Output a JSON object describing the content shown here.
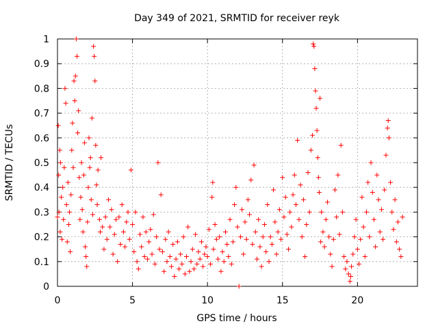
{
  "chart_data": {
    "type": "scatter",
    "title": "Day 349 of 2021, SRMTID for receiver reyk",
    "xlabel": "GPS time / hours",
    "ylabel": "SRMTID / TECUs",
    "xlim": [
      0,
      24
    ],
    "ylim": [
      0,
      1
    ],
    "x_ticks": [
      0,
      5,
      10,
      15,
      20
    ],
    "x_tick_labels": [
      "0",
      "5",
      "10",
      "15",
      "20"
    ],
    "y_ticks": [
      0,
      0.1,
      0.2,
      0.3,
      0.4,
      0.5,
      0.6,
      0.7,
      0.8,
      0.9,
      1
    ],
    "y_tick_labels": [
      "0",
      "0.1",
      "0.2",
      "0.3",
      "0.4",
      "0.5",
      "0.6",
      "0.7",
      "0.8",
      "0.9",
      "1"
    ],
    "grid": true,
    "marker": "+",
    "series": [
      {
        "name": "SRMTID",
        "color": "#ff0000",
        "points": [
          [
            0.0,
            0.28
          ],
          [
            0.05,
            0.65
          ],
          [
            0.08,
            0.45
          ],
          [
            0.1,
            0.3
          ],
          [
            0.15,
            0.55
          ],
          [
            0.18,
            0.22
          ],
          [
            0.2,
            0.5
          ],
          [
            0.25,
            0.36
          ],
          [
            0.3,
            0.19
          ],
          [
            0.35,
            0.4
          ],
          [
            0.4,
            0.27
          ],
          [
            0.45,
            0.48
          ],
          [
            0.5,
            0.8
          ],
          [
            0.55,
            0.74
          ],
          [
            0.6,
            0.33
          ],
          [
            0.65,
            0.18
          ],
          [
            0.7,
            0.42
          ],
          [
            0.75,
            0.25
          ],
          [
            0.8,
            0.3
          ],
          [
            0.85,
            0.14
          ],
          [
            0.9,
            0.37
          ],
          [
            0.95,
            0.55
          ],
          [
            1.0,
            0.66
          ],
          [
            1.05,
            0.48
          ],
          [
            1.1,
            0.83
          ],
          [
            1.15,
            0.75
          ],
          [
            1.2,
            0.85
          ],
          [
            1.25,
            1.0
          ],
          [
            1.3,
            0.93
          ],
          [
            1.35,
            0.62
          ],
          [
            1.4,
            0.71
          ],
          [
            1.45,
            0.44
          ],
          [
            1.5,
            0.27
          ],
          [
            1.55,
            0.36
          ],
          [
            1.6,
            0.5
          ],
          [
            1.65,
            0.31
          ],
          [
            1.7,
            0.22
          ],
          [
            1.75,
            0.45
          ],
          [
            1.8,
            0.58
          ],
          [
            1.85,
            0.16
          ],
          [
            1.9,
            0.12
          ],
          [
            1.95,
            0.08
          ],
          [
            2.0,
            0.26
          ],
          [
            2.05,
            0.4
          ],
          [
            2.1,
            0.6
          ],
          [
            2.15,
            0.48
          ],
          [
            2.2,
            0.52
          ],
          [
            2.25,
            0.35
          ],
          [
            2.3,
            0.68
          ],
          [
            2.35,
            0.29
          ],
          [
            2.4,
            0.97
          ],
          [
            2.45,
            0.93
          ],
          [
            2.5,
            0.83
          ],
          [
            2.55,
            0.57
          ],
          [
            2.6,
            0.41
          ],
          [
            2.65,
            0.33
          ],
          [
            2.7,
            0.47
          ],
          [
            2.8,
            0.27
          ],
          [
            2.85,
            0.22
          ],
          [
            2.9,
            0.52
          ],
          [
            3.0,
            0.24
          ],
          [
            3.1,
            0.15
          ],
          [
            3.2,
            0.28
          ],
          [
            3.3,
            0.19
          ],
          [
            3.4,
            0.35
          ],
          [
            3.5,
            0.24
          ],
          [
            3.6,
            0.31
          ],
          [
            3.7,
            0.13
          ],
          [
            3.8,
            0.21
          ],
          [
            3.9,
            0.27
          ],
          [
            4.0,
            0.1
          ],
          [
            4.1,
            0.28
          ],
          [
            4.2,
            0.17
          ],
          [
            4.3,
            0.33
          ],
          [
            4.4,
            0.22
          ],
          [
            4.5,
            0.16
          ],
          [
            4.6,
            0.26
          ],
          [
            4.7,
            0.3
          ],
          [
            4.8,
            0.19
          ],
          [
            4.9,
            0.47
          ],
          [
            5.0,
            0.25
          ],
          [
            5.1,
            0.14
          ],
          [
            5.2,
            0.3
          ],
          [
            5.3,
            0.1
          ],
          [
            5.4,
            0.07
          ],
          [
            5.5,
            0.21
          ],
          [
            5.6,
            0.16
          ],
          [
            5.7,
            0.28
          ],
          [
            5.8,
            0.12
          ],
          [
            5.9,
            0.22
          ],
          [
            6.0,
            0.11
          ],
          [
            6.1,
            0.18
          ],
          [
            6.2,
            0.23
          ],
          [
            6.3,
            0.13
          ],
          [
            6.4,
            0.29
          ],
          [
            6.5,
            0.09
          ],
          [
            6.6,
            0.2
          ],
          [
            6.7,
            0.5
          ],
          [
            6.8,
            0.15
          ],
          [
            6.9,
            0.37
          ],
          [
            7.0,
            0.14
          ],
          [
            7.1,
            0.06
          ],
          [
            7.2,
            0.19
          ],
          [
            7.3,
            0.1
          ],
          [
            7.4,
            0.22
          ],
          [
            7.5,
            0.12
          ],
          [
            7.6,
            0.08
          ],
          [
            7.7,
            0.17
          ],
          [
            7.8,
            0.04
          ],
          [
            7.9,
            0.11
          ],
          [
            8.0,
            0.18
          ],
          [
            8.1,
            0.07
          ],
          [
            8.2,
            0.13
          ],
          [
            8.3,
            0.09
          ],
          [
            8.4,
            0.2
          ],
          [
            8.5,
            0.05
          ],
          [
            8.6,
            0.12
          ],
          [
            8.7,
            0.24
          ],
          [
            8.8,
            0.06
          ],
          [
            8.9,
            0.1
          ],
          [
            9.0,
            0.15
          ],
          [
            9.1,
            0.07
          ],
          [
            9.2,
            0.21
          ],
          [
            9.3,
            0.09
          ],
          [
            9.4,
            0.14
          ],
          [
            9.5,
            0.11
          ],
          [
            9.6,
            0.18
          ],
          [
            9.7,
            0.08
          ],
          [
            9.8,
            0.13
          ],
          [
            9.9,
            0.16
          ],
          [
            10.0,
            0.12
          ],
          [
            10.1,
            0.23
          ],
          [
            10.2,
            0.09
          ],
          [
            10.3,
            0.36
          ],
          [
            10.35,
            0.42
          ],
          [
            10.4,
            0.15
          ],
          [
            10.5,
            0.25
          ],
          [
            10.6,
            0.19
          ],
          [
            10.7,
            0.11
          ],
          [
            10.8,
            0.2
          ],
          [
            10.9,
            0.06
          ],
          [
            11.0,
            0.14
          ],
          [
            11.1,
            0.1
          ],
          [
            11.2,
            0.22
          ],
          [
            11.3,
            0.17
          ],
          [
            11.4,
            0.12
          ],
          [
            11.5,
            0.27
          ],
          [
            11.6,
            0.09
          ],
          [
            11.7,
            0.18
          ],
          [
            11.8,
            0.33
          ],
          [
            11.9,
            0.4
          ],
          [
            12.0,
            0.24
          ],
          [
            12.1,
            0.0
          ],
          [
            12.2,
            0.2
          ],
          [
            12.3,
            0.31
          ],
          [
            12.4,
            0.13
          ],
          [
            12.5,
            0.26
          ],
          [
            12.6,
            0.19
          ],
          [
            12.7,
            0.35
          ],
          [
            12.8,
            0.29
          ],
          [
            12.9,
            0.43
          ],
          [
            13.0,
            0.17
          ],
          [
            13.1,
            0.49
          ],
          [
            13.2,
            0.22
          ],
          [
            13.3,
            0.11
          ],
          [
            13.4,
            0.27
          ],
          [
            13.5,
            0.16
          ],
          [
            13.6,
            0.08
          ],
          [
            13.7,
            0.2
          ],
          [
            13.8,
            0.25
          ],
          [
            13.9,
            0.14
          ],
          [
            14.0,
            0.33
          ],
          [
            14.1,
            0.1
          ],
          [
            14.2,
            0.2
          ],
          [
            14.3,
            0.17
          ],
          [
            14.4,
            0.39
          ],
          [
            14.5,
            0.26
          ],
          [
            14.6,
            0.13
          ],
          [
            14.7,
            0.22
          ],
          [
            14.8,
            0.31
          ],
          [
            14.9,
            0.19
          ],
          [
            15.0,
            0.44
          ],
          [
            15.1,
            0.28
          ],
          [
            15.2,
            0.36
          ],
          [
            15.3,
            0.21
          ],
          [
            15.4,
            0.15
          ],
          [
            15.5,
            0.3
          ],
          [
            15.6,
            0.24
          ],
          [
            15.7,
            0.37
          ],
          [
            15.8,
            0.45
          ],
          [
            15.9,
            0.33
          ],
          [
            16.0,
            0.59
          ],
          [
            16.1,
            0.27
          ],
          [
            16.2,
            0.41
          ],
          [
            16.3,
            0.2
          ],
          [
            16.4,
            0.35
          ],
          [
            16.5,
            0.12
          ],
          [
            16.6,
            0.25
          ],
          [
            16.7,
            0.46
          ],
          [
            16.8,
            0.3
          ],
          [
            16.9,
            0.55
          ],
          [
            17.0,
            0.61
          ],
          [
            17.05,
            0.98
          ],
          [
            17.1,
            0.97
          ],
          [
            17.15,
            0.88
          ],
          [
            17.2,
            0.79
          ],
          [
            17.25,
            0.72
          ],
          [
            17.3,
            0.63
          ],
          [
            17.35,
            0.52
          ],
          [
            17.4,
            0.44
          ],
          [
            17.45,
            0.38
          ],
          [
            17.5,
            0.76
          ],
          [
            17.55,
            0.18
          ],
          [
            17.6,
            0.3
          ],
          [
            17.7,
            0.22
          ],
          [
            17.8,
            0.16
          ],
          [
            17.9,
            0.27
          ],
          [
            18.0,
            0.34
          ],
          [
            18.1,
            0.2
          ],
          [
            18.2,
            0.13
          ],
          [
            18.3,
            0.08
          ],
          [
            18.4,
            0.19
          ],
          [
            18.5,
            0.39
          ],
          [
            18.6,
            0.28
          ],
          [
            18.7,
            0.45
          ],
          [
            18.8,
            0.21
          ],
          [
            18.9,
            0.57
          ],
          [
            19.0,
            0.3
          ],
          [
            19.1,
            0.12
          ],
          [
            19.2,
            0.07
          ],
          [
            19.3,
            0.1
          ],
          [
            19.4,
            0.05
          ],
          [
            19.5,
            0.02
          ],
          [
            19.55,
            0.04
          ],
          [
            19.6,
            0.08
          ],
          [
            19.7,
            0.13
          ],
          [
            19.8,
            0.2
          ],
          [
            19.9,
            0.27
          ],
          [
            20.0,
            0.15
          ],
          [
            20.1,
            0.09
          ],
          [
            20.2,
            0.19
          ],
          [
            20.3,
            0.36
          ],
          [
            20.4,
            0.24
          ],
          [
            20.5,
            0.12
          ],
          [
            20.6,
            0.3
          ],
          [
            20.7,
            0.42
          ],
          [
            20.8,
            0.2
          ],
          [
            20.9,
            0.5
          ],
          [
            21.0,
            0.38
          ],
          [
            21.1,
            0.27
          ],
          [
            21.2,
            0.16
          ],
          [
            21.3,
            0.45
          ],
          [
            21.4,
            0.35
          ],
          [
            21.5,
            0.22
          ],
          [
            21.6,
            0.31
          ],
          [
            21.7,
            0.19
          ],
          [
            21.8,
            0.39
          ],
          [
            21.9,
            0.53
          ],
          [
            22.0,
            0.64
          ],
          [
            22.05,
            0.67
          ],
          [
            22.1,
            0.6
          ],
          [
            22.2,
            0.42
          ],
          [
            22.3,
            0.3
          ],
          [
            22.4,
            0.23
          ],
          [
            22.5,
            0.35
          ],
          [
            22.6,
            0.18
          ],
          [
            22.7,
            0.26
          ],
          [
            22.8,
            0.15
          ],
          [
            22.9,
            0.12
          ],
          [
            23.0,
            0.28
          ]
        ]
      }
    ]
  }
}
